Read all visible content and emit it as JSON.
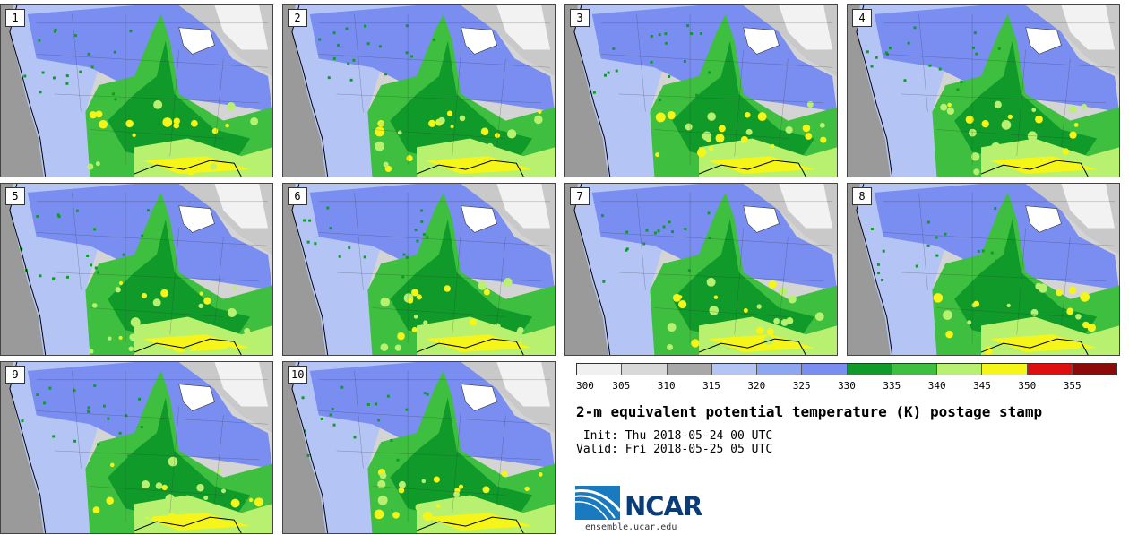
{
  "panels": [
    {
      "label": "1"
    },
    {
      "label": "2"
    },
    {
      "label": "3"
    },
    {
      "label": "4"
    },
    {
      "label": "5"
    },
    {
      "label": "6"
    },
    {
      "label": "7"
    },
    {
      "label": "8"
    },
    {
      "label": "9"
    },
    {
      "label": "10"
    }
  ],
  "colorbar": {
    "colors": [
      "#f0f0f0",
      "#d8d8d8",
      "#a8a8a8",
      "#b3c4f5",
      "#8da6f2",
      "#7a8df0",
      "#0f9a2a",
      "#3fbf3f",
      "#b8f070",
      "#f5f51a",
      "#e00f0f",
      "#8c0a0a"
    ],
    "ticks": [
      "300",
      "305",
      "310",
      "315",
      "320",
      "325",
      "330",
      "335",
      "340",
      "345",
      "350",
      "355"
    ]
  },
  "title": "2-m equivalent potential temperature (K) postage stamp",
  "init": " Init: Thu 2018-05-24 00 UTC",
  "valid": "Valid: Fri 2018-05-25 05 UTC",
  "logo": {
    "text": "NCAR",
    "color": "#0a3c78",
    "arc_color": "#1a7ac0"
  },
  "site": "ensemble.ucar.edu"
}
